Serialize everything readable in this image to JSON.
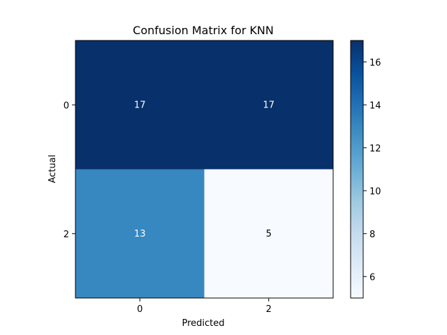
{
  "chart_data": {
    "type": "heatmap",
    "title": "Confusion Matrix for KNN",
    "xlabel": "Predicted",
    "ylabel": "Actual",
    "x_categories": [
      "0",
      "2"
    ],
    "y_categories": [
      "0",
      "2"
    ],
    "values": [
      [
        17,
        17
      ],
      [
        13,
        5
      ]
    ],
    "colormap": "Blues",
    "color_range": [
      5,
      17
    ],
    "colorbar_ticks": [
      "6",
      "8",
      "10",
      "12",
      "14",
      "16"
    ],
    "colorbar_tick_values": [
      6,
      8,
      10,
      12,
      14,
      16
    ],
    "colors": {
      "low": "#f7fbff",
      "high": "#08306b",
      "label_light": "#ffffff",
      "label_dark": "#000000"
    }
  }
}
